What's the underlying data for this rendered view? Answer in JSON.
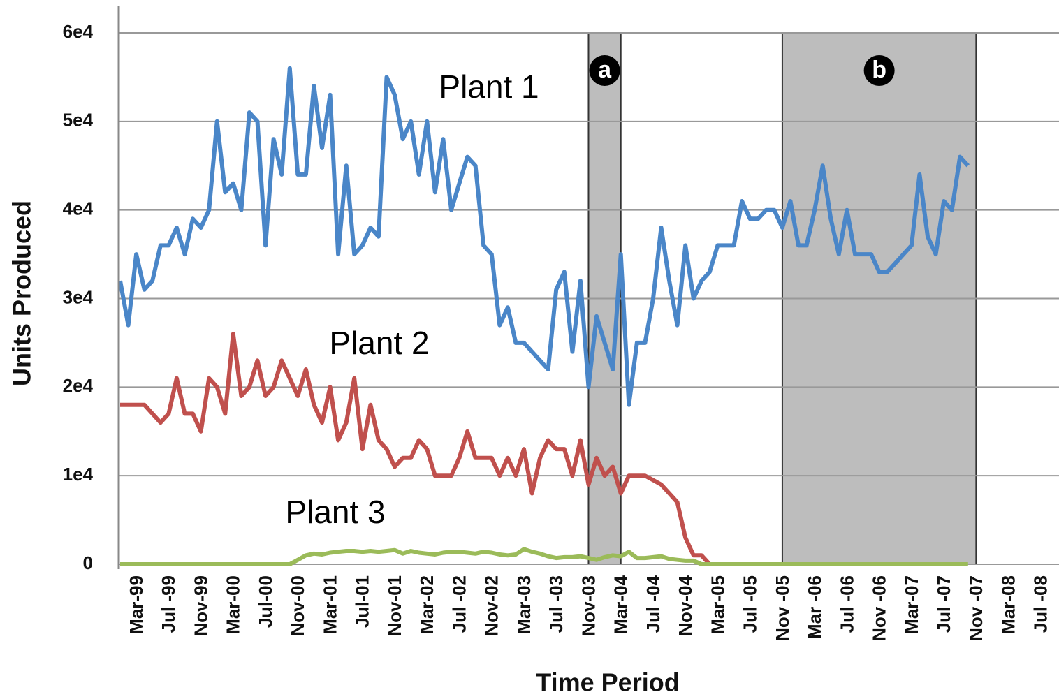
{
  "chart_data": {
    "type": "line",
    "x_label": "Time Period",
    "y_label": "Units Produced",
    "annotations": [
      "Plant 1",
      "Plant 2",
      "Plant 3"
    ],
    "shaded_regions": [
      {
        "label": "a",
        "from": "Nov-03",
        "to": "Mar-04"
      },
      {
        "label": "b",
        "from": "Nov -05",
        "to": "Nov -07"
      }
    ],
    "categories": [
      null,
      null,
      "Mar-99",
      null,
      null,
      null,
      "Jul -99",
      null,
      null,
      null,
      "Nov-99",
      null,
      null,
      null,
      "Mar-00",
      null,
      null,
      null,
      "Jul-00",
      null,
      null,
      null,
      "Nov-00",
      null,
      null,
      null,
      "Mar-01",
      null,
      null,
      null,
      "Jul-01",
      null,
      null,
      null,
      "Nov-01",
      null,
      null,
      null,
      "Mar-02",
      null,
      null,
      null,
      "Jul -02",
      null,
      null,
      null,
      "Nov-02",
      null,
      null,
      null,
      "Mar-03",
      null,
      null,
      null,
      "Jul -03",
      null,
      null,
      null,
      "Nov-03",
      null,
      null,
      null,
      "Mar-04",
      null,
      null,
      null,
      "Jul -04",
      null,
      null,
      null,
      "Nov-04",
      null,
      null,
      null,
      "Mar-05",
      null,
      null,
      null,
      "Jul -05",
      null,
      null,
      null,
      "Nov -05",
      null,
      null,
      null,
      "Mar -06",
      null,
      null,
      null,
      "Jul -06",
      null,
      null,
      null,
      "Nov -06",
      null,
      null,
      null,
      "Mar-07",
      null,
      null,
      null,
      "Jul -07",
      null,
      null,
      null,
      "Nov -07",
      null,
      null,
      null,
      "Mar-08",
      null,
      null,
      null,
      "Jul -08",
      null,
      null
    ],
    "series": [
      {
        "name": "Plant 1",
        "color": "#4a86c8",
        "values": [
          32000,
          27000,
          35000,
          31000,
          32000,
          36000,
          36000,
          38000,
          35000,
          39000,
          38000,
          40000,
          50000,
          42000,
          43000,
          40000,
          51000,
          50000,
          36000,
          48000,
          44000,
          56000,
          44000,
          44000,
          54000,
          47000,
          53000,
          35000,
          45000,
          35000,
          36000,
          38000,
          37000,
          55000,
          53000,
          48000,
          50000,
          44000,
          50000,
          42000,
          48000,
          40000,
          43000,
          46000,
          45000,
          36000,
          35000,
          27000,
          29000,
          25000,
          25000,
          24000,
          23000,
          22000,
          31000,
          33000,
          24000,
          32000,
          20000,
          28000,
          25000,
          22000,
          35000,
          18000,
          25000,
          25000,
          30000,
          38000,
          32000,
          27000,
          36000,
          30000,
          32000,
          33000,
          36000,
          36000,
          36000,
          41000,
          39000,
          39000,
          40000,
          40000,
          38000,
          41000,
          36000,
          36000,
          40000,
          45000,
          39000,
          35000,
          40000,
          35000,
          35000,
          35000,
          33000,
          33000,
          34000,
          35000,
          36000,
          44000,
          37000,
          35000,
          41000,
          40000,
          46000,
          45000,
          null,
          null,
          null,
          null,
          null,
          null,
          null,
          null,
          null,
          null,
          null
        ]
      },
      {
        "name": "Plant 2",
        "color": "#c0504d",
        "values": [
          18000,
          18000,
          18000,
          18000,
          17000,
          16000,
          17000,
          21000,
          17000,
          17000,
          15000,
          21000,
          20000,
          17000,
          26000,
          19000,
          20000,
          23000,
          19000,
          20000,
          23000,
          21000,
          19000,
          22000,
          18000,
          16000,
          20000,
          14000,
          16000,
          21000,
          13000,
          18000,
          14000,
          13000,
          11000,
          12000,
          12000,
          14000,
          13000,
          10000,
          10000,
          10000,
          12000,
          15000,
          12000,
          12000,
          12000,
          10000,
          12000,
          10000,
          13000,
          8000,
          12000,
          14000,
          13000,
          13000,
          10000,
          14000,
          9000,
          12000,
          10000,
          11000,
          8000,
          10000,
          10000,
          10000,
          9500,
          9000,
          8000,
          7000,
          3000,
          1000,
          1000,
          0,
          null,
          null,
          null,
          null,
          null,
          null,
          null,
          null,
          null,
          null,
          null,
          null,
          null,
          null,
          null,
          null,
          null,
          null,
          null,
          null,
          null,
          null,
          null,
          null,
          null,
          null,
          null,
          null,
          null,
          null,
          null,
          null,
          null,
          null,
          null,
          null,
          null,
          null,
          null,
          null,
          null,
          null,
          null
        ]
      },
      {
        "name": "Plant 3",
        "color": "#9bbb59",
        "values": [
          0,
          0,
          0,
          0,
          0,
          0,
          0,
          0,
          0,
          0,
          0,
          0,
          0,
          0,
          0,
          0,
          0,
          0,
          0,
          0,
          0,
          0,
          500,
          1000,
          1200,
          1100,
          1300,
          1400,
          1500,
          1500,
          1400,
          1500,
          1400,
          1500,
          1600,
          1200,
          1500,
          1300,
          1200,
          1100,
          1300,
          1400,
          1400,
          1300,
          1200,
          1400,
          1300,
          1100,
          1000,
          1100,
          1700,
          1400,
          1200,
          900,
          700,
          800,
          800,
          900,
          700,
          500,
          800,
          1000,
          900,
          1400,
          700,
          700,
          800,
          900,
          600,
          500,
          400,
          400,
          0,
          0,
          0,
          0,
          0,
          0,
          0,
          0,
          0,
          0,
          0,
          0,
          0,
          0,
          0,
          0,
          0,
          0,
          0,
          0,
          0,
          0,
          0,
          0,
          0,
          0,
          0,
          0,
          0,
          0,
          0,
          0,
          0,
          0,
          null,
          null,
          null,
          null,
          null,
          null,
          null,
          null,
          null,
          null,
          null
        ]
      }
    ],
    "ylim": [
      0,
      60000
    ],
    "yticks": [
      0,
      {
        "value": 10000,
        "label": "1e4"
      },
      {
        "value": 20000,
        "label": "2e4"
      },
      {
        "value": 30000,
        "label": "3e4"
      },
      {
        "value": 40000,
        "label": "4e4"
      },
      {
        "value": 50000,
        "label": "5e4"
      },
      {
        "value": 60000,
        "label": "6e4"
      }
    ],
    "grid": true
  }
}
